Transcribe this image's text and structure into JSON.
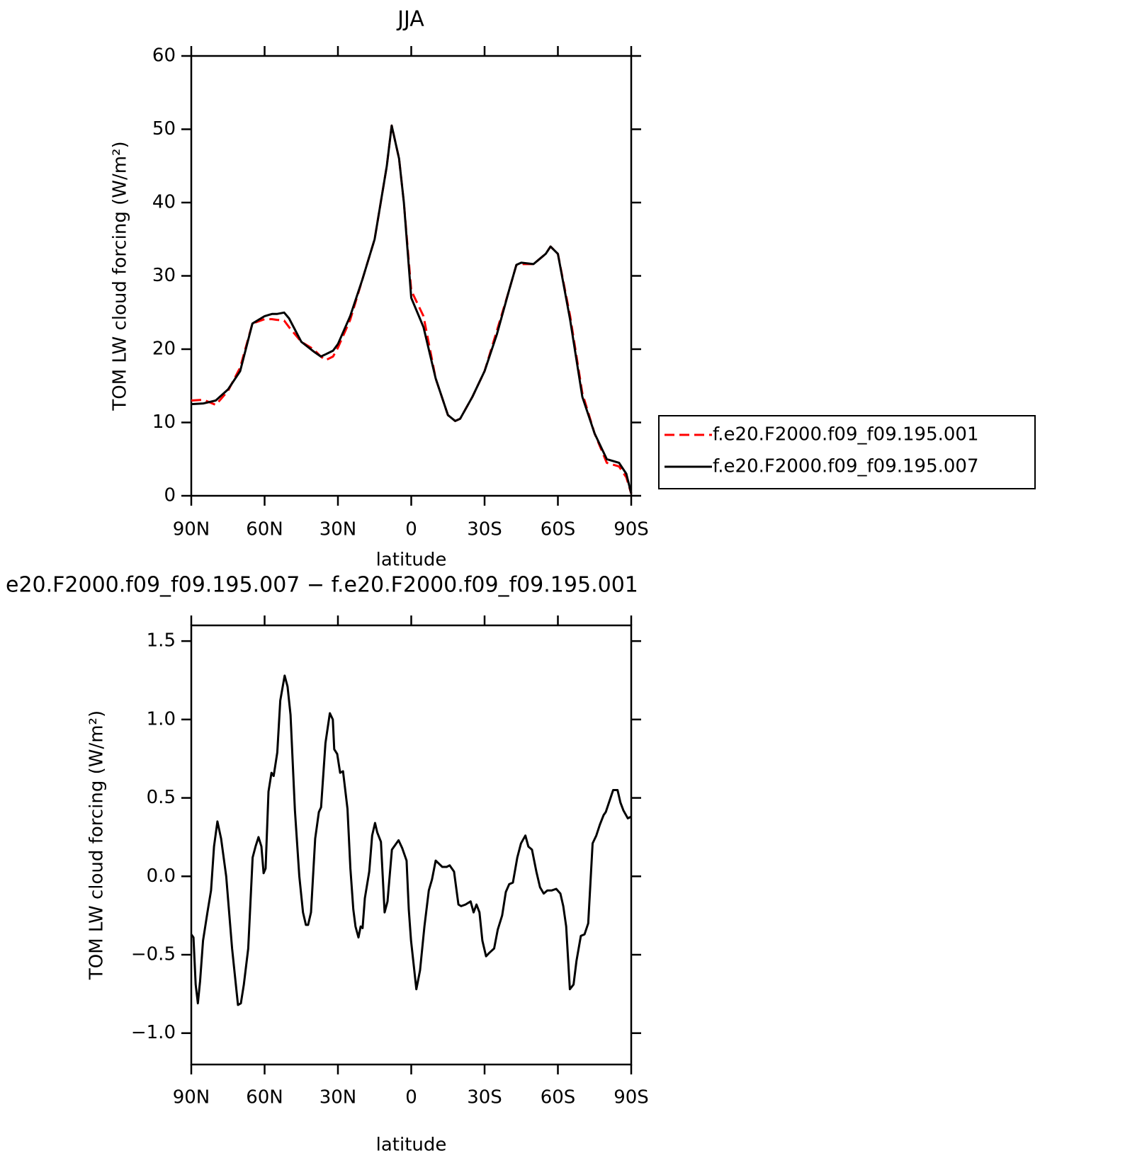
{
  "chart_data": [
    {
      "type": "line",
      "title": "JJA",
      "xlabel": "latitude",
      "ylabel": "TOM LW cloud forcing (W/m²)",
      "x": [
        90,
        85,
        80,
        75,
        70,
        65,
        60,
        57,
        55,
        52,
        50,
        45,
        40,
        37,
        35,
        32,
        30,
        25,
        20,
        15,
        10,
        8,
        5,
        3,
        0,
        -5,
        -10,
        -15,
        -18,
        -20,
        -25,
        -30,
        -35,
        -40,
        -43,
        -45,
        -50,
        -55,
        -57,
        -60,
        -65,
        -70,
        -75,
        -80,
        -85,
        -88,
        -90
      ],
      "series": [
        {
          "name": "f.e20.F2000.f09_f09.195.001",
          "color": "#ff0000",
          "dashed": true,
          "values": [
            13.0,
            13.1,
            12.4,
            14.3,
            17.5,
            23.5,
            24.1,
            24.1,
            24.0,
            23.9,
            23.0,
            21,
            20.0,
            19.0,
            18.5,
            19.0,
            20.2,
            24,
            29.5,
            35,
            45,
            50.5,
            46,
            40,
            28,
            24.5,
            16,
            11,
            10.2,
            10.5,
            13.5,
            17,
            22.5,
            28,
            31.5,
            31.6,
            31.6,
            33,
            34,
            33,
            24.5,
            14,
            8.5,
            4.5,
            4,
            2.5,
            0.3
          ]
        },
        {
          "name": "f.e20.F2000.f09_f09.195.007",
          "color": "#000000",
          "dashed": false,
          "values": [
            12.5,
            12.6,
            13.0,
            14.5,
            17,
            23.5,
            24.5,
            24.8,
            24.8,
            25.0,
            24.2,
            21,
            19.7,
            19.0,
            19.3,
            19.8,
            20.7,
            24.5,
            29.5,
            35,
            45,
            50.5,
            46,
            40,
            27,
            23,
            16,
            11,
            10.2,
            10.5,
            13.5,
            17,
            22,
            28,
            31.5,
            31.8,
            31.6,
            33,
            34,
            33,
            24,
            13.5,
            8.5,
            5,
            4.5,
            3,
            0.3
          ]
        }
      ],
      "xlim": [
        90,
        -90
      ],
      "xticks": [
        {
          "value": 90,
          "label": "90N"
        },
        {
          "value": 60,
          "label": "60N"
        },
        {
          "value": 30,
          "label": "30N"
        },
        0,
        {
          "value": -30,
          "label": "30S"
        },
        {
          "value": -60,
          "label": "60S"
        },
        {
          "value": -90,
          "label": "90S"
        }
      ],
      "ylim": [
        0,
        60
      ],
      "yticks": [
        0,
        10,
        20,
        30,
        40,
        50,
        60
      ],
      "legend": "right"
    },
    {
      "type": "line",
      "title": "e20.F2000.f09_f09.195.007 − f.e20.F2000.f09_f09.195.001",
      "xlabel": "latitude",
      "ylabel": "TOM LW cloud forcing (W/m²)",
      "x": [
        90,
        89.1,
        88.2,
        87.3,
        86.4,
        85.2,
        83.4,
        81.9,
        80.7,
        79.3,
        77.8,
        75.7,
        73.3,
        70.9,
        69.7,
        68.5,
        66.7,
        64.9,
        63.7,
        62.5,
        61.3,
        60.4,
        59.6,
        58.4,
        57.2,
        56.3,
        54.8,
        53.6,
        51.8,
        50.6,
        49.4,
        47.6,
        45.8,
        44.3,
        43.1,
        42.2,
        41.0,
        39.3,
        37.8,
        36.9,
        35.1,
        33.3,
        32.1,
        31.5,
        30.3,
        29.1,
        27.9,
        26.1,
        24.9,
        23.7,
        22.8,
        21.6,
        20.7,
        19.9,
        19.0,
        17.2,
        16.0,
        14.8,
        13.9,
        12.4,
        10.9,
        9.7,
        7.9,
        5.2,
        3.7,
        1.9,
        1.0,
        0.1,
        -0.9,
        -2.1,
        -3.6,
        -5.4,
        -7.2,
        -8.5,
        -10.0,
        -12.7,
        -14.5,
        -15.7,
        -17.5,
        -19.3,
        -20.4,
        -22.2,
        -24.3,
        -25.5,
        -26.7,
        -27.9,
        -29.1,
        -30.6,
        -31.8,
        -33.9,
        -35.4,
        -37.2,
        -38.7,
        -40.1,
        -41.6,
        -43.4,
        -44.9,
        -46.7,
        -47.9,
        -49.4,
        -51.2,
        -52.7,
        -54.2,
        -55.7,
        -57.5,
        -59.3,
        -61.0,
        -62.2,
        -63.4,
        -64.9,
        -66.4,
        -67.6,
        -69.4,
        -70.9,
        -72.4,
        -74.2,
        -75.7,
        -77.2,
        -78.7,
        -79.6,
        -81.1,
        -82.6,
        -84.4,
        -85.6,
        -86.8,
        -88.6,
        -90
      ],
      "series": [
        {
          "color": "#000000",
          "dashed": false,
          "values": [
            -0.37,
            -0.39,
            -0.69,
            -0.81,
            -0.67,
            -0.41,
            -0.23,
            -0.09,
            0.19,
            0.35,
            0.24,
            0.0,
            -0.46,
            -0.82,
            -0.81,
            -0.69,
            -0.46,
            0.12,
            0.19,
            0.25,
            0.19,
            0.02,
            0.05,
            0.54,
            0.66,
            0.64,
            0.79,
            1.12,
            1.28,
            1.21,
            1.03,
            0.42,
            0.0,
            -0.23,
            -0.31,
            -0.31,
            -0.23,
            0.24,
            0.41,
            0.44,
            0.85,
            1.04,
            1.0,
            0.81,
            0.78,
            0.66,
            0.67,
            0.43,
            0.05,
            -0.21,
            -0.32,
            -0.39,
            -0.32,
            -0.33,
            -0.14,
            0.03,
            0.26,
            0.34,
            0.28,
            0.22,
            -0.23,
            -0.16,
            0.17,
            0.23,
            0.18,
            0.1,
            -0.21,
            -0.41,
            -0.55,
            -0.72,
            -0.6,
            -0.32,
            -0.09,
            -0.02,
            0.1,
            0.06,
            0.06,
            0.07,
            0.03,
            -0.18,
            -0.19,
            -0.18,
            -0.16,
            -0.23,
            -0.18,
            -0.23,
            -0.41,
            -0.51,
            -0.49,
            -0.46,
            -0.34,
            -0.25,
            -0.1,
            -0.05,
            -0.04,
            0.12,
            0.21,
            0.26,
            0.19,
            0.17,
            0.03,
            -0.07,
            -0.11,
            -0.09,
            -0.09,
            -0.08,
            -0.11,
            -0.19,
            -0.32,
            -0.72,
            -0.69,
            -0.54,
            -0.38,
            -0.37,
            -0.3,
            0.21,
            0.26,
            0.33,
            0.39,
            0.41,
            0.48,
            0.55,
            0.55,
            0.47,
            0.42,
            0.37,
            0.38
          ]
        }
      ],
      "xlim": [
        90,
        -90
      ],
      "xticks": [
        {
          "value": 90,
          "label": "90N"
        },
        {
          "value": 60,
          "label": "60N"
        },
        {
          "value": 30,
          "label": "30N"
        },
        0,
        {
          "value": -30,
          "label": "30S"
        },
        {
          "value": -60,
          "label": "60S"
        },
        {
          "value": -90,
          "label": "90S"
        }
      ],
      "ylim": [
        -1.2,
        1.6
      ],
      "yticks": [
        {
          "value": -1.0,
          "label": "−1.0"
        },
        {
          "value": -0.5,
          "label": "−0.5"
        },
        {
          "value": 0.0,
          "label": "0.0"
        },
        0.5,
        {
          "value": 1.0,
          "label": "1.0"
        },
        1.5
      ]
    }
  ]
}
